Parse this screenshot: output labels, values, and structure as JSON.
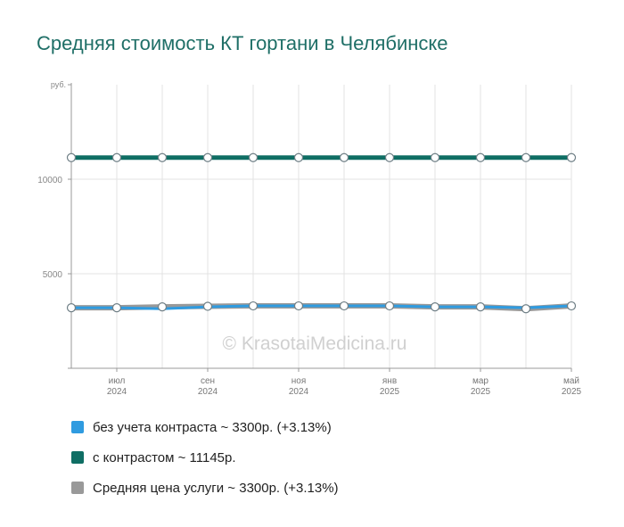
{
  "title": "Средняя стоимость КТ гортани в Челябинске",
  "watermark": "© KrasotaiMedicina.ru",
  "chart_data": {
    "type": "line",
    "y_unit": "руб.",
    "ylim": [
      0,
      15000
    ],
    "yticks": [
      5000,
      10000
    ],
    "grid": true,
    "x": [
      "2024-06",
      "2024-07",
      "2024-08",
      "2024-09",
      "2024-10",
      "2024-11",
      "2024-12",
      "2025-01",
      "2025-02",
      "2025-03",
      "2025-04",
      "2025-05"
    ],
    "xtick_labels": [
      {
        "at": "2024-07",
        "month": "июл",
        "year": "2024"
      },
      {
        "at": "2024-09",
        "month": "сен",
        "year": "2024"
      },
      {
        "at": "2024-11",
        "month": "ноя",
        "year": "2024"
      },
      {
        "at": "2025-01",
        "month": "янв",
        "year": "2025"
      },
      {
        "at": "2025-03",
        "month": "мар",
        "year": "2025"
      },
      {
        "at": "2025-05",
        "month": "май",
        "year": "2025"
      }
    ],
    "series": [
      {
        "name": "без учета контраста",
        "color": "#2f9be0",
        "values": [
          3200,
          3200,
          3150,
          3250,
          3300,
          3300,
          3300,
          3300,
          3250,
          3250,
          3200,
          3300
        ]
      },
      {
        "name": "с контрастом",
        "color": "#0f6e64",
        "values": [
          11145,
          11145,
          11145,
          11145,
          11145,
          11145,
          11145,
          11145,
          11145,
          11145,
          11145,
          11145
        ]
      },
      {
        "name": "Средняя цена услуги",
        "color": "#999999",
        "values": [
          3200,
          3200,
          3250,
          3280,
          3300,
          3300,
          3300,
          3300,
          3250,
          3250,
          3150,
          3300
        ]
      }
    ]
  },
  "legend": [
    {
      "label": "без учета контраста ~ 3300р. (+3.13%)",
      "color": "#2f9be0"
    },
    {
      "label": "с контрастом ~ 11145р.",
      "color": "#0f6e64"
    },
    {
      "label": "Средняя цена услуги ~ 3300р. (+3.13%)",
      "color": "#999999"
    }
  ]
}
